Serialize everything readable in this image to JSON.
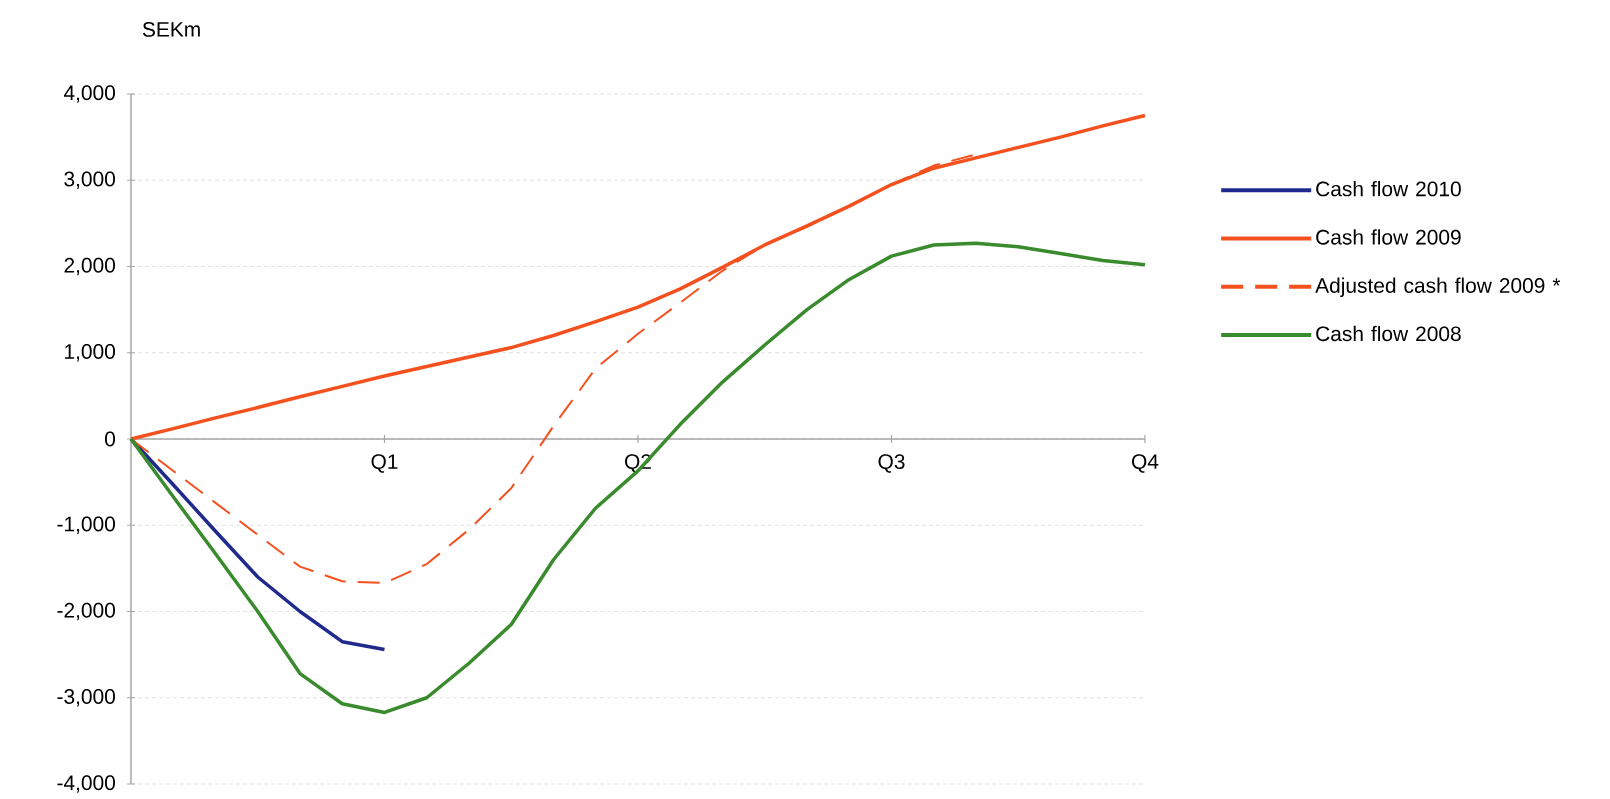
{
  "chart_data": {
    "type": "line",
    "ylabel": "SEKm",
    "categories": [
      null,
      null,
      null,
      null,
      null,
      null,
      "Q1",
      null,
      null,
      null,
      null,
      null,
      "Q2",
      null,
      null,
      null,
      null,
      null,
      "Q3",
      null,
      null,
      null,
      null,
      null,
      "Q4"
    ],
    "ylim": [
      -4000,
      4000
    ],
    "yticks": [
      {
        "value": -4000,
        "label": "-4,000"
      },
      {
        "value": -3000,
        "label": "-3,000"
      },
      {
        "value": -2000,
        "label": "-2,000"
      },
      {
        "value": -1000,
        "label": "-1,000"
      },
      {
        "value": 0,
        "label": "0"
      },
      {
        "value": 1000,
        "label": "1,000"
      },
      {
        "value": 2000,
        "label": "2,000"
      },
      {
        "value": 3000,
        "label": "3,000"
      },
      {
        "value": 4000,
        "label": "4,000"
      }
    ],
    "grid": "y",
    "legend": "right",
    "series": [
      {
        "name": "Cash flow 2010",
        "color": "#1f2a8c",
        "line_style": "solid",
        "values": [
          0,
          -530,
          -1070,
          -1600,
          -2000,
          -2350,
          -2440,
          null,
          null,
          null,
          null,
          null,
          null,
          null,
          null,
          null,
          null,
          null,
          null,
          null,
          null,
          null,
          null,
          null,
          null
        ]
      },
      {
        "name": "Cash flow 2009",
        "color": "#f4511e",
        "line_style": "solid",
        "values": [
          0,
          120,
          245,
          365,
          490,
          610,
          730,
          840,
          950,
          1060,
          1200,
          1360,
          1530,
          1740,
          1990,
          2250,
          2470,
          2700,
          2950,
          3140,
          3260,
          3380,
          3500,
          3630,
          3750
        ]
      },
      {
        "name": "Adjusted cash flow 2009 *",
        "color": "#f4511e",
        "line_style": "dashed",
        "values": [
          0,
          -370,
          -740,
          -1110,
          -1480,
          -1650,
          -1670,
          -1450,
          -1050,
          -570,
          150,
          820,
          1220,
          1580,
          1950,
          2250,
          2460,
          2700,
          2950,
          3170,
          3300,
          null,
          null,
          null,
          null
        ]
      },
      {
        "name": "Cash flow 2008",
        "color": "#3a8a2e",
        "line_style": "solid",
        "values": [
          0,
          -670,
          -1330,
          -2000,
          -2720,
          -3070,
          -3170,
          -3000,
          -2600,
          -2150,
          -1400,
          -800,
          -370,
          170,
          660,
          1090,
          1500,
          1850,
          2120,
          2250,
          2270,
          2230,
          2150,
          2070,
          2020
        ]
      }
    ]
  }
}
